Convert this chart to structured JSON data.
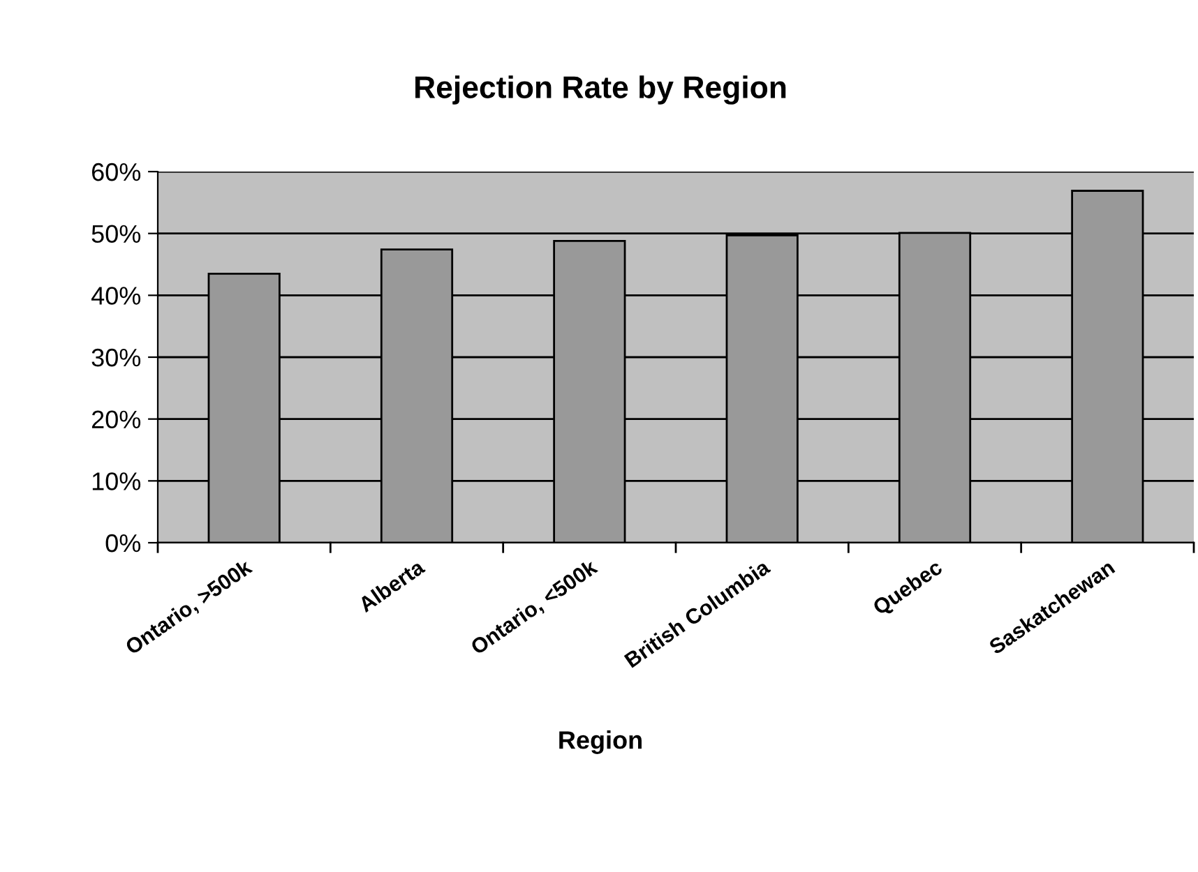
{
  "chart_data": {
    "type": "bar",
    "title": "Rejection Rate by Region",
    "xlabel": "Region",
    "categories": [
      "Ontario, >500k",
      "Alberta",
      "Ontario, <500k",
      "British Columbia",
      "Quebec",
      "Saskatchewan"
    ],
    "values": [
      43.5,
      47.4,
      48.8,
      49.7,
      50.1,
      56.9
    ],
    "color": "#999999",
    "ylim": [
      0,
      60
    ],
    "yticks": [
      {
        "value": 0,
        "label": "0%"
      },
      {
        "value": 10,
        "label": "10%"
      },
      {
        "value": 20,
        "label": "20%"
      },
      {
        "value": 30,
        "label": "30%"
      },
      {
        "value": 40,
        "label": "40%"
      },
      {
        "value": 50,
        "label": "50%"
      },
      {
        "value": 60,
        "label": "60%"
      }
    ],
    "grid": "y",
    "legend": false
  }
}
